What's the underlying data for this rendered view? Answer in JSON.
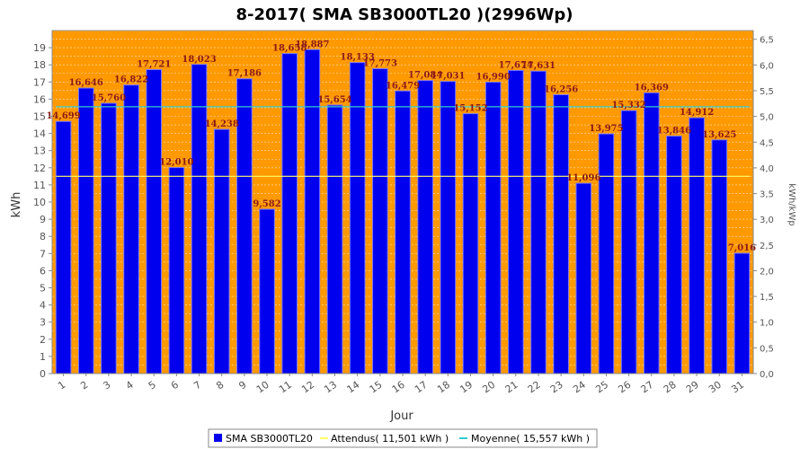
{
  "chart_data": {
    "type": "bar",
    "title": "8-2017( SMA SB3000TL20 )(2996Wp)",
    "xlabel": "Jour",
    "ylabel": "kWh",
    "y2label": "kWh/kWp",
    "ylim": [
      0,
      20
    ],
    "y2lim": [
      0,
      6.67
    ],
    "yticks": [
      0,
      1,
      2,
      3,
      4,
      5,
      6,
      7,
      8,
      9,
      10,
      11,
      12,
      13,
      14,
      15,
      16,
      17,
      18,
      19
    ],
    "y2ticks": [
      "0,0",
      "0,5",
      "1,0",
      "1,5",
      "2,0",
      "2,5",
      "3,0",
      "3,5",
      "4,0",
      "4,5",
      "5,0",
      "5,5",
      "6,0",
      "6,5"
    ],
    "y2tick_values": [
      0,
      0.5,
      1,
      1.5,
      2,
      2.5,
      3,
      3.5,
      4,
      4.5,
      5,
      5.5,
      6,
      6.5
    ],
    "categories": [
      "1",
      "2",
      "3",
      "4",
      "5",
      "6",
      "7",
      "8",
      "9",
      "10",
      "11",
      "12",
      "13",
      "14",
      "15",
      "16",
      "17",
      "18",
      "19",
      "20",
      "21",
      "22",
      "23",
      "24",
      "25",
      "26",
      "27",
      "28",
      "29",
      "30",
      "31"
    ],
    "series": [
      {
        "name": "SMA SB3000TL20",
        "values": [
          14.699,
          16.646,
          15.76,
          16.822,
          17.721,
          12.01,
          18.023,
          14.238,
          17.186,
          9.582,
          18.658,
          18.887,
          15.654,
          18.133,
          17.773,
          16.479,
          17.084,
          17.031,
          15.152,
          16.99,
          17.674,
          17.631,
          16.256,
          11.096,
          13.975,
          15.332,
          16.369,
          13.846,
          14.912,
          13.625,
          7.016
        ],
        "labels": [
          "14,699",
          "16,646",
          "15,760",
          "16,822",
          "17,721",
          "12,010",
          "18,023",
          "14,238",
          "17,186",
          "9,582",
          "18,658",
          "18,887",
          "15,654",
          "18,133",
          "17,773",
          "16,479",
          "17,084",
          "17,031",
          "15,152",
          "16,990",
          "17,674",
          "17,631",
          "16,256",
          "11,096",
          "13,975",
          "15,332",
          "16,369",
          "13,846",
          "14,912",
          "13,625",
          "7,016"
        ]
      }
    ],
    "lines": [
      {
        "name": "Attendus( 11,501 kWh )",
        "value": 11.501
      },
      {
        "name": "Moyenne( 15,557 kWh )",
        "value": 15.557
      }
    ],
    "grid": true,
    "legend": "bottom-center"
  },
  "colors": {
    "plot_bg": "#ff9900",
    "bar": "#0000ee",
    "bar_edge": "#7777ff",
    "expected_line": "#ffff66",
    "average_line": "#33cccc",
    "label": "#8a1a1a"
  }
}
